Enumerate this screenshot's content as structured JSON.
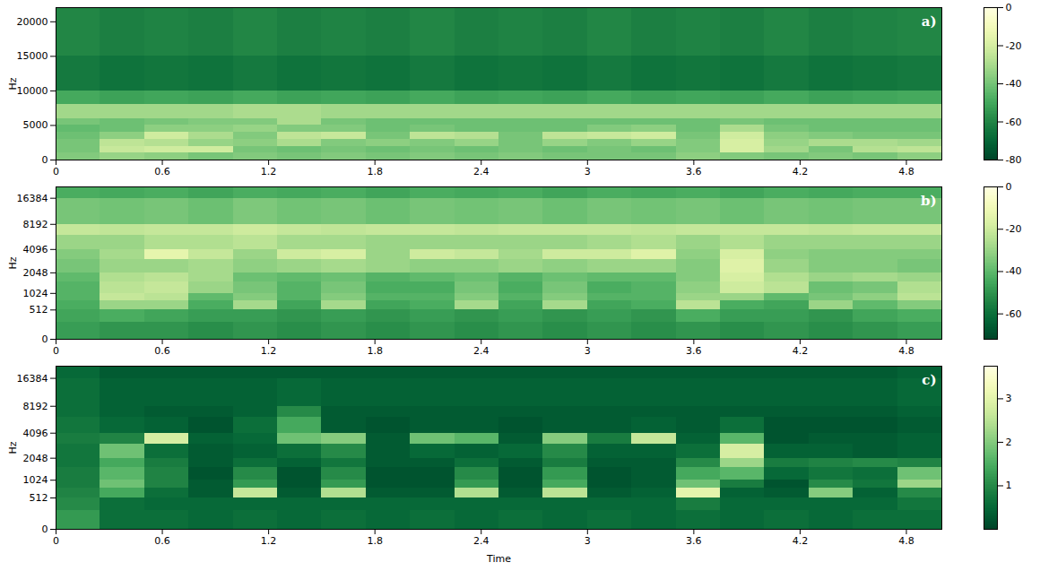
{
  "chart_data": [
    {
      "type": "heatmap",
      "title": "a)",
      "y_label": "Hz",
      "x": [
        0,
        0.25,
        0.5,
        0.75,
        1.0,
        1.25,
        1.5,
        1.75,
        2.0,
        2.25,
        2.5,
        2.75,
        3.0,
        3.25,
        3.5,
        3.75,
        4.0,
        4.25,
        4.5,
        4.75,
        5.0
      ],
      "y": [
        0,
        1000,
        2000,
        3000,
        4000,
        5000,
        6000,
        8000,
        10000,
        15000,
        22050
      ],
      "values": [
        [
          -38,
          -34,
          -36,
          -40,
          -38,
          -40,
          -38,
          -40,
          -38,
          -40,
          -38,
          -40,
          -40,
          -40,
          -36,
          -38,
          -40,
          -38,
          -40,
          -36
        ],
        [
          -40,
          -24,
          -22,
          -22,
          -40,
          -42,
          -40,
          -42,
          -40,
          -42,
          -40,
          -42,
          -40,
          -42,
          -38,
          -20,
          -32,
          -40,
          -28,
          -26
        ],
        [
          -40,
          -26,
          -28,
          -34,
          -36,
          -30,
          -38,
          -36,
          -38,
          -34,
          -40,
          -34,
          -38,
          -34,
          -38,
          -20,
          -34,
          -30,
          -30,
          -32
        ],
        [
          -42,
          -36,
          -22,
          -30,
          -38,
          -26,
          -24,
          -40,
          -26,
          -28,
          -40,
          -26,
          -24,
          -22,
          -40,
          -22,
          -36,
          -38,
          -40,
          -40
        ],
        [
          -44,
          -42,
          -36,
          -36,
          -34,
          -38,
          -38,
          -42,
          -40,
          -42,
          -42,
          -42,
          -38,
          -36,
          -42,
          -30,
          -40,
          -42,
          -42,
          -42
        ],
        [
          -40,
          -42,
          -40,
          -38,
          -38,
          -30,
          -40,
          -42,
          -42,
          -42,
          -42,
          -42,
          -42,
          -42,
          -42,
          -40,
          -42,
          -42,
          -42,
          -42
        ],
        [
          -32,
          -32,
          -32,
          -32,
          -30,
          -30,
          -32,
          -32,
          -32,
          -32,
          -32,
          -32,
          -32,
          -32,
          -32,
          -32,
          -32,
          -32,
          -32,
          -32
        ],
        [
          -50,
          -52,
          -51,
          -52,
          -50,
          -52,
          -51,
          -52,
          -50,
          -52,
          -51,
          -52,
          -50,
          -52,
          -51,
          -52,
          -50,
          -52,
          -51,
          -50
        ],
        [
          -64,
          -66,
          -65,
          -66,
          -64,
          -66,
          -65,
          -66,
          -64,
          -66,
          -65,
          -66,
          -64,
          -66,
          -65,
          -66,
          -64,
          -66,
          -65,
          -64
        ],
        [
          -60,
          -62,
          -61,
          -62,
          -60,
          -62,
          -61,
          -62,
          -60,
          -62,
          -61,
          -62,
          -60,
          -62,
          -61,
          -62,
          -60,
          -62,
          -61,
          -60
        ]
      ],
      "xlim": [
        0,
        5.0
      ],
      "xticks": [
        0,
        0.6,
        1.2,
        1.8,
        2.4,
        3,
        3.6,
        4.2,
        4.8
      ],
      "ylim": [
        0,
        22050
      ],
      "yticks": [
        0,
        5000,
        10000,
        15000,
        20000
      ],
      "colorbar": {
        "range": [
          -80,
          0
        ],
        "ticks": [
          0,
          -20,
          -40,
          -60,
          -80
        ]
      }
    },
    {
      "type": "heatmap",
      "title": "b)",
      "y_label": "Hz",
      "log": "y",
      "x": [
        0,
        0.25,
        0.5,
        0.75,
        1.0,
        1.25,
        1.5,
        1.75,
        2.0,
        2.25,
        2.5,
        2.75,
        3.0,
        3.25,
        3.5,
        3.75,
        4.0,
        4.25,
        4.5,
        4.75,
        5.0
      ],
      "y": [
        0,
        256,
        512,
        768,
        1024,
        1536,
        2048,
        3072,
        4096,
        6144,
        8192,
        16384,
        22050
      ],
      "values": [
        [
          -48,
          -50,
          -50,
          -52,
          -50,
          -52,
          -50,
          -52,
          -50,
          -52,
          -50,
          -52,
          -50,
          -52,
          -50,
          -52,
          -50,
          -52,
          -50,
          -48
        ],
        [
          -46,
          -44,
          -46,
          -48,
          -48,
          -50,
          -48,
          -50,
          -48,
          -50,
          -48,
          -50,
          -48,
          -50,
          -44,
          -48,
          -48,
          -50,
          -46,
          -44
        ],
        [
          -44,
          -30,
          -30,
          -44,
          -28,
          -46,
          -28,
          -46,
          -44,
          -28,
          -46,
          -28,
          -46,
          -44,
          -24,
          -44,
          -46,
          -30,
          -40,
          -34
        ],
        [
          -42,
          -22,
          -24,
          -40,
          -34,
          -42,
          -34,
          -42,
          -42,
          -34,
          -42,
          -34,
          -42,
          -42,
          -30,
          -30,
          -40,
          -36,
          -32,
          -24
        ],
        [
          -42,
          -24,
          -22,
          -30,
          -36,
          -42,
          -36,
          -44,
          -44,
          -36,
          -44,
          -36,
          -44,
          -42,
          -32,
          -20,
          -24,
          -38,
          -36,
          -26
        ],
        [
          -40,
          -26,
          -24,
          -28,
          -38,
          -40,
          -38,
          -42,
          -40,
          -38,
          -42,
          -38,
          -40,
          -40,
          -34,
          -18,
          -26,
          -30,
          -28,
          -30
        ],
        [
          -36,
          -30,
          -30,
          -28,
          -32,
          -30,
          -28,
          -30,
          -32,
          -32,
          -30,
          -32,
          -30,
          -30,
          -34,
          -16,
          -30,
          -34,
          -34,
          -36
        ],
        [
          -34,
          -28,
          -14,
          -22,
          -30,
          -20,
          -18,
          -30,
          -20,
          -22,
          -28,
          -20,
          -20,
          -16,
          -32,
          -18,
          -32,
          -34,
          -34,
          -34
        ],
        [
          -30,
          -30,
          -26,
          -26,
          -24,
          -28,
          -28,
          -30,
          -30,
          -30,
          -30,
          -30,
          -28,
          -26,
          -30,
          -26,
          -30,
          -30,
          -30,
          -30
        ],
        [
          -22,
          -23,
          -22,
          -22,
          -20,
          -22,
          -23,
          -22,
          -22,
          -23,
          -22,
          -22,
          -22,
          -23,
          -22,
          -22,
          -22,
          -23,
          -22,
          -22
        ],
        [
          -36,
          -37,
          -36,
          -38,
          -35,
          -37,
          -36,
          -38,
          -36,
          -37,
          -36,
          -38,
          -36,
          -37,
          -36,
          -38,
          -36,
          -37,
          -36,
          -36
        ],
        [
          -44,
          -45,
          -44,
          -46,
          -44,
          -45,
          -44,
          -46,
          -44,
          -45,
          -44,
          -46,
          -44,
          -45,
          -44,
          -46,
          -44,
          -45,
          -44,
          -44
        ]
      ],
      "xlim": [
        0,
        5.0
      ],
      "xticks": [
        0,
        0.6,
        1.2,
        1.8,
        2.4,
        3,
        3.6,
        4.2,
        4.8
      ],
      "ylim": [
        0,
        22050
      ],
      "yticks": [
        0,
        512,
        1024,
        2048,
        4096,
        8192,
        16384
      ],
      "colorbar": {
        "range": [
          -72,
          0
        ],
        "ticks": [
          0,
          -20,
          -40,
          -60
        ]
      }
    },
    {
      "type": "heatmap",
      "title": "c)",
      "x_label": "Time",
      "y_label": "Hz",
      "log": "y",
      "x": [
        0,
        0.25,
        0.5,
        0.75,
        1.0,
        1.25,
        1.5,
        1.75,
        2.0,
        2.25,
        2.5,
        2.75,
        3.0,
        3.25,
        3.5,
        3.75,
        4.0,
        4.25,
        4.5,
        4.75,
        5.0
      ],
      "y": [
        0,
        256,
        512,
        768,
        1024,
        1536,
        2048,
        3072,
        4096,
        6144,
        8192,
        16384,
        22050
      ],
      "values": [
        [
          1.2,
          0.6,
          0.6,
          0.5,
          0.6,
          0.5,
          0.6,
          0.5,
          0.6,
          0.5,
          0.6,
          0.5,
          0.6,
          0.5,
          0.6,
          0.5,
          0.6,
          0.5,
          0.6,
          0.6
        ],
        [
          1.0,
          0.6,
          0.5,
          0.5,
          0.5,
          0.5,
          0.5,
          0.5,
          0.5,
          0.5,
          0.5,
          0.5,
          0.5,
          0.5,
          0.8,
          0.5,
          0.5,
          0.5,
          0.5,
          0.7
        ],
        [
          0.9,
          1.4,
          0.6,
          0.3,
          2.6,
          0.3,
          2.4,
          0.3,
          0.3,
          2.4,
          0.3,
          2.5,
          0.3,
          0.4,
          3.0,
          0.4,
          0.3,
          2.0,
          0.4,
          1.0
        ],
        [
          0.8,
          1.8,
          0.9,
          0.3,
          1.2,
          0.2,
          1.2,
          0.2,
          0.2,
          1.2,
          0.2,
          1.4,
          0.2,
          0.3,
          1.8,
          0.8,
          0.2,
          1.0,
          0.7,
          2.2
        ],
        [
          0.8,
          1.6,
          0.9,
          0.2,
          1.0,
          0.2,
          1.0,
          0.2,
          0.2,
          1.0,
          0.2,
          1.2,
          0.2,
          0.3,
          1.4,
          1.6,
          0.5,
          0.7,
          0.6,
          1.8
        ],
        [
          0.7,
          1.4,
          0.8,
          0.3,
          0.6,
          0.4,
          0.7,
          0.3,
          0.3,
          0.6,
          0.3,
          0.8,
          0.3,
          0.3,
          1.0,
          2.2,
          0.8,
          0.9,
          1.0,
          0.9
        ],
        [
          0.7,
          1.8,
          0.6,
          0.3,
          0.4,
          0.6,
          1.0,
          0.3,
          0.5,
          0.4,
          0.5,
          1.0,
          0.4,
          0.4,
          0.6,
          2.8,
          0.4,
          0.4,
          0.3,
          0.4
        ],
        [
          0.8,
          0.9,
          2.8,
          0.4,
          0.5,
          1.8,
          2.0,
          0.3,
          1.8,
          1.6,
          0.3,
          2.0,
          0.8,
          2.6,
          0.4,
          1.6,
          0.2,
          0.3,
          0.3,
          0.4
        ],
        [
          0.7,
          0.5,
          0.4,
          0.2,
          0.6,
          1.4,
          0.3,
          0.2,
          0.3,
          0.3,
          0.2,
          0.3,
          0.3,
          0.4,
          0.3,
          0.6,
          0.2,
          0.2,
          0.2,
          0.3
        ],
        [
          0.6,
          0.4,
          0.3,
          0.3,
          0.4,
          1.0,
          0.3,
          0.3,
          0.3,
          0.3,
          0.3,
          0.3,
          0.3,
          0.3,
          0.3,
          0.3,
          0.3,
          0.3,
          0.3,
          0.4
        ],
        [
          0.6,
          0.4,
          0.4,
          0.4,
          0.4,
          0.5,
          0.4,
          0.4,
          0.4,
          0.4,
          0.4,
          0.4,
          0.4,
          0.4,
          0.4,
          0.4,
          0.4,
          0.4,
          0.4,
          0.5
        ],
        [
          0.5,
          0.3,
          0.3,
          0.3,
          0.3,
          0.3,
          0.3,
          0.3,
          0.3,
          0.3,
          0.3,
          0.3,
          0.3,
          0.3,
          0.3,
          0.3,
          0.3,
          0.3,
          0.3,
          0.4
        ]
      ],
      "xlim": [
        0,
        5.0
      ],
      "xticks": [
        0,
        0.6,
        1.2,
        1.8,
        2.4,
        3,
        3.6,
        4.2,
        4.8
      ],
      "ylim": [
        0,
        22050
      ],
      "yticks": [
        0,
        512,
        1024,
        2048,
        4096,
        8192,
        16384
      ],
      "colorbar": {
        "range": [
          0,
          3.75
        ],
        "ticks": [
          1,
          2,
          3
        ]
      }
    }
  ]
}
